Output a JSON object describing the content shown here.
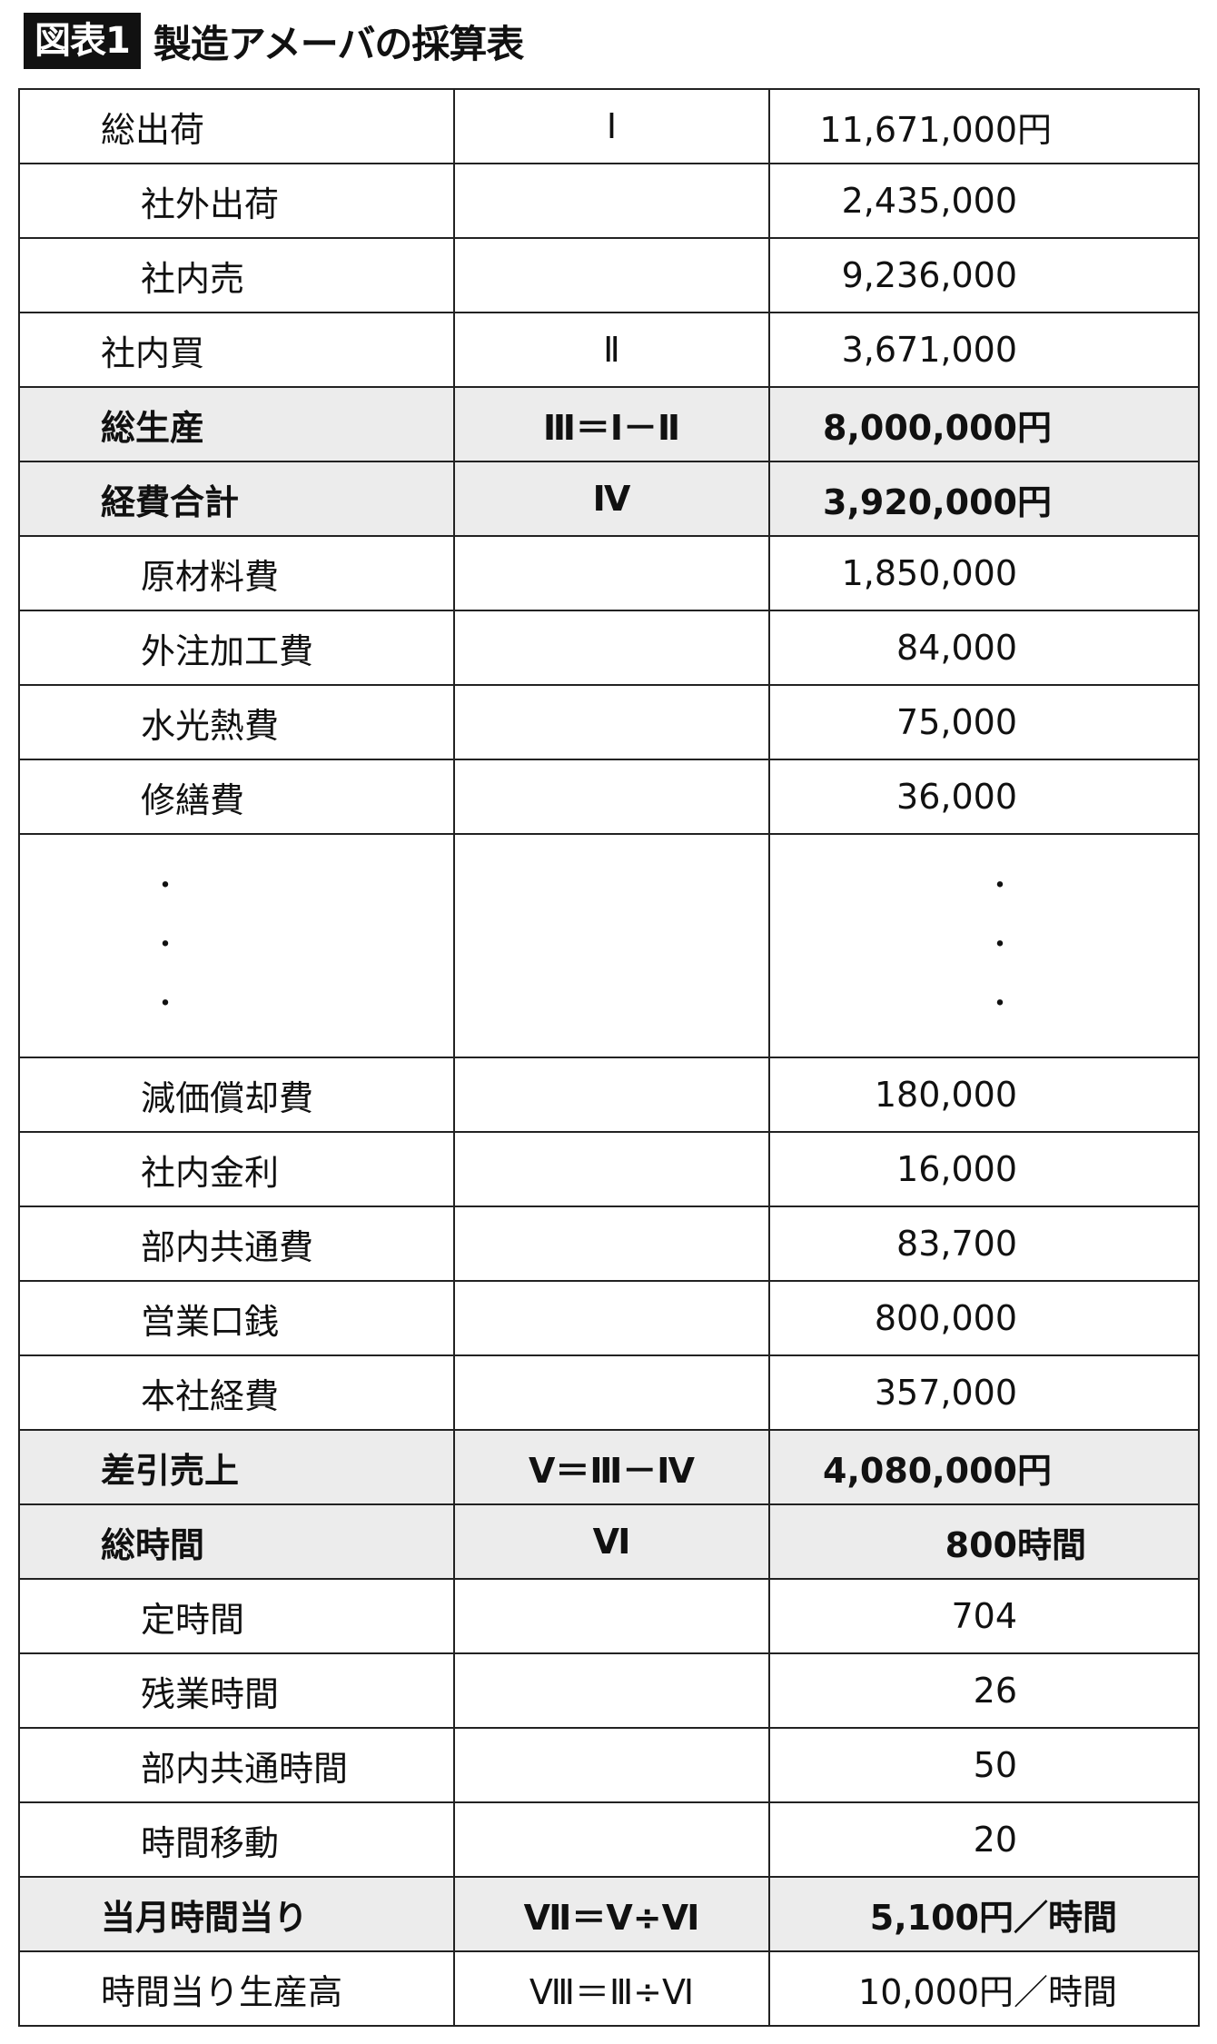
{
  "header": {
    "figure_label": "図表1",
    "title": "製造アメーバの採算表"
  },
  "rows": [
    {
      "label": "総出荷",
      "level": 0,
      "ref": "Ⅰ",
      "value": "11,671,000",
      "suffix": "円"
    },
    {
      "label": "社外出荷",
      "level": 1,
      "ref": "",
      "value": "2,435,000",
      "suffix": ""
    },
    {
      "label": "社内売",
      "level": 1,
      "ref": "",
      "value": "9,236,000",
      "suffix": ""
    },
    {
      "label": "社内買",
      "level": 0,
      "ref": "Ⅱ",
      "value": "3,671,000",
      "suffix": ""
    },
    {
      "label": "総生産",
      "level": 0,
      "ref": "Ⅲ＝Ⅰ－Ⅱ",
      "value": "8,000,000",
      "suffix": "円",
      "highlight": true
    },
    {
      "label": "経費合計",
      "level": 0,
      "ref": "Ⅳ",
      "value": "3,920,000",
      "suffix": "円",
      "highlight": true
    },
    {
      "label": "原材料費",
      "level": 1,
      "ref": "",
      "value": "1,850,000",
      "suffix": ""
    },
    {
      "label": "外注加工費",
      "level": 1,
      "ref": "",
      "value": "84,000",
      "suffix": ""
    },
    {
      "label": "水光熱費",
      "level": 1,
      "ref": "",
      "value": "75,000",
      "suffix": ""
    },
    {
      "label": "修繕費",
      "level": 1,
      "ref": "",
      "value": "36,000",
      "suffix": ""
    },
    {
      "ellipsis": true,
      "dots": [
        "・",
        "・",
        "・"
      ]
    },
    {
      "label": "減価償却費",
      "level": 1,
      "ref": "",
      "value": "180,000",
      "suffix": ""
    },
    {
      "label": "社内金利",
      "level": 1,
      "ref": "",
      "value": "16,000",
      "suffix": ""
    },
    {
      "label": "部内共通費",
      "level": 1,
      "ref": "",
      "value": "83,700",
      "suffix": ""
    },
    {
      "label": "営業口銭",
      "level": 1,
      "ref": "",
      "value": "800,000",
      "suffix": ""
    },
    {
      "label": "本社経費",
      "level": 1,
      "ref": "",
      "value": "357,000",
      "suffix": ""
    },
    {
      "label": "差引売上",
      "level": 0,
      "ref": "Ⅴ＝Ⅲ－Ⅳ",
      "value": "4,080,000",
      "suffix": "円",
      "highlight": true
    },
    {
      "label": "総時間",
      "level": 0,
      "ref": "Ⅵ",
      "value": "800",
      "suffix": "時間",
      "highlight": true
    },
    {
      "label": "定時間",
      "level": 1,
      "ref": "",
      "value": "704",
      "suffix": ""
    },
    {
      "label": "残業時間",
      "level": 1,
      "ref": "",
      "value": "26",
      "suffix": ""
    },
    {
      "label": "部内共通時間",
      "level": 1,
      "ref": "",
      "value": "50",
      "suffix": ""
    },
    {
      "label": "時間移動",
      "level": 1,
      "ref": "",
      "value": "20",
      "suffix": ""
    },
    {
      "label": "当月時間当り",
      "level": 0,
      "ref": "Ⅶ＝Ⅴ÷Ⅵ",
      "value": "5,100",
      "suffix": "円／時間",
      "highlight": true
    },
    {
      "label": "時間当り生産高",
      "level": 0,
      "ref": "Ⅷ＝Ⅲ÷Ⅵ",
      "value": "10,000",
      "suffix": "円／時間"
    }
  ],
  "colors": {
    "highlight_row": "#ececec",
    "border": "#222222",
    "title_bg": "#111111"
  }
}
